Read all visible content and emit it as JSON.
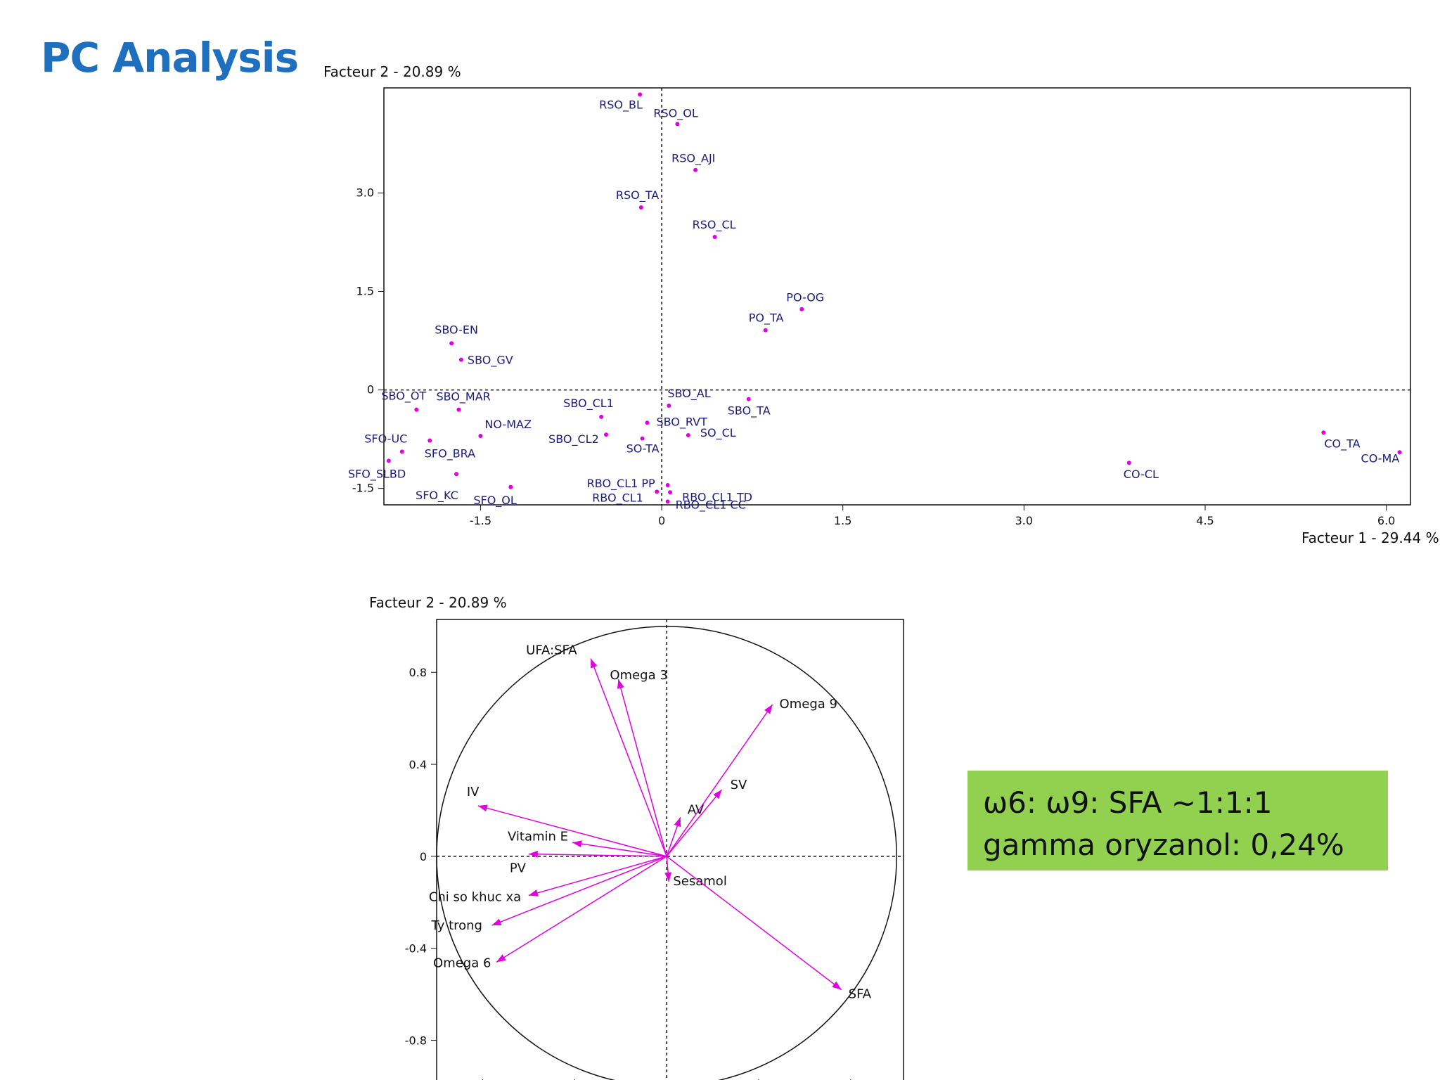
{
  "slide": {
    "title": "PC Analysis"
  },
  "note": {
    "line1": "ω6: ω9: SFA ~1:1:1",
    "line2": "gamma oryzanol: 0,24%"
  },
  "colors": {
    "point": "#e000e0",
    "arrow": "#e000e0",
    "label": "#1a1a7a",
    "title": "#1f6fbf",
    "note_bg": "#92d050"
  },
  "chart_data": [
    {
      "type": "scatter",
      "title": "",
      "xlabel": "Facteur 1  -  29.44 %",
      "ylabel": "Facteur 2  -  20.89 %",
      "xlim": [
        -2.3,
        6.2
      ],
      "ylim": [
        -1.75,
        4.6
      ],
      "xticks": [
        "-1.5",
        "0",
        "1.5",
        "3.0",
        "4.5",
        "6.0"
      ],
      "yticks": [
        "-1.5",
        "0",
        "1.5",
        "3.0"
      ],
      "grid": false,
      "points": [
        {
          "label": "RSO_BL",
          "x": -0.18,
          "y": 4.5
        },
        {
          "label": "RSO_OL",
          "x": 0.13,
          "y": 4.05
        },
        {
          "label": "RSO_AJI",
          "x": 0.28,
          "y": 3.35
        },
        {
          "label": "RSO_TA",
          "x": -0.17,
          "y": 2.78
        },
        {
          "label": "RSO_CL",
          "x": 0.44,
          "y": 2.33
        },
        {
          "label": "PO-OG",
          "x": 1.16,
          "y": 1.23
        },
        {
          "label": "PO_TA",
          "x": 0.86,
          "y": 0.91
        },
        {
          "label": "SBO-EN",
          "x": -1.74,
          "y": 0.71
        },
        {
          "label": "SBO_GV",
          "x": -1.66,
          "y": 0.46
        },
        {
          "label": "SBO_OT",
          "x": -2.03,
          "y": -0.3
        },
        {
          "label": "SBO_MAR",
          "x": -1.68,
          "y": -0.3
        },
        {
          "label": "SBO_CL1",
          "x": -0.5,
          "y": -0.41
        },
        {
          "label": "SBO_AL",
          "x": 0.06,
          "y": -0.24
        },
        {
          "label": "SBO_TA",
          "x": 0.72,
          "y": -0.14
        },
        {
          "label": "NO-MAZ",
          "x": -1.5,
          "y": -0.7
        },
        {
          "label": "SBO_RVT",
          "x": -0.12,
          "y": -0.5
        },
        {
          "label": "SO_CL",
          "x": 0.22,
          "y": -0.69
        },
        {
          "label": "SFO-UC",
          "x": -1.92,
          "y": -0.77
        },
        {
          "label": "SFO_BRA",
          "x": -2.15,
          "y": -0.94
        },
        {
          "label": "SBO_CL2",
          "x": -0.46,
          "y": -0.68
        },
        {
          "label": "SO-TA",
          "x": -0.16,
          "y": -0.74
        },
        {
          "label": "SFO_SLBD",
          "x": -2.26,
          "y": -1.08
        },
        {
          "label": "SFO_KC",
          "x": -1.7,
          "y": -1.28
        },
        {
          "label": "SFO_OL",
          "x": -1.25,
          "y": -1.48
        },
        {
          "label": "RBO_CL1 PP",
          "x": 0.05,
          "y": -1.45
        },
        {
          "label": "RBO_CL1",
          "x": -0.04,
          "y": -1.55
        },
        {
          "label": "RBO_CL1 TD",
          "x": 0.07,
          "y": -1.56
        },
        {
          "label": "RBO_CL1 CC",
          "x": 0.05,
          "y": -1.7
        },
        {
          "label": "CO-CL",
          "x": 3.87,
          "y": -1.11
        },
        {
          "label": "CO_TA",
          "x": 5.48,
          "y": -0.65
        },
        {
          "label": "CO-MA",
          "x": 6.11,
          "y": -0.95
        }
      ]
    },
    {
      "type": "scatter",
      "subtype": "correlation-circle",
      "title": "",
      "xlabel": "",
      "ylabel": "Facteur 2  -  20.89 %",
      "xlim": [
        -1.0,
        1.03
      ],
      "ylim": [
        -1.0,
        1.03
      ],
      "yticks": [
        "0.8",
        "0.4",
        "0",
        "-0.4",
        "-0.8"
      ],
      "vectors": [
        {
          "label": "UFA:SFA",
          "x": -0.33,
          "y": 0.86
        },
        {
          "label": "Omega 3",
          "x": -0.21,
          "y": 0.77
        },
        {
          "label": "Omega 9",
          "x": 0.46,
          "y": 0.66
        },
        {
          "label": "IV",
          "x": -0.82,
          "y": 0.22
        },
        {
          "label": "SV",
          "x": 0.24,
          "y": 0.29
        },
        {
          "label": "AV",
          "x": 0.06,
          "y": 0.17
        },
        {
          "label": "Vitamin E",
          "x": -0.41,
          "y": 0.06
        },
        {
          "label": "PV",
          "x": -0.6,
          "y": 0.01
        },
        {
          "label": "Sesamol",
          "x": 0.01,
          "y": -0.11
        },
        {
          "label": "Chi so khuc xa",
          "x": -0.6,
          "y": -0.17
        },
        {
          "label": "Ty trong",
          "x": -0.76,
          "y": -0.3
        },
        {
          "label": "Omega 6",
          "x": -0.74,
          "y": -0.46
        },
        {
          "label": "SFA",
          "x": 0.76,
          "y": -0.58
        }
      ]
    }
  ]
}
